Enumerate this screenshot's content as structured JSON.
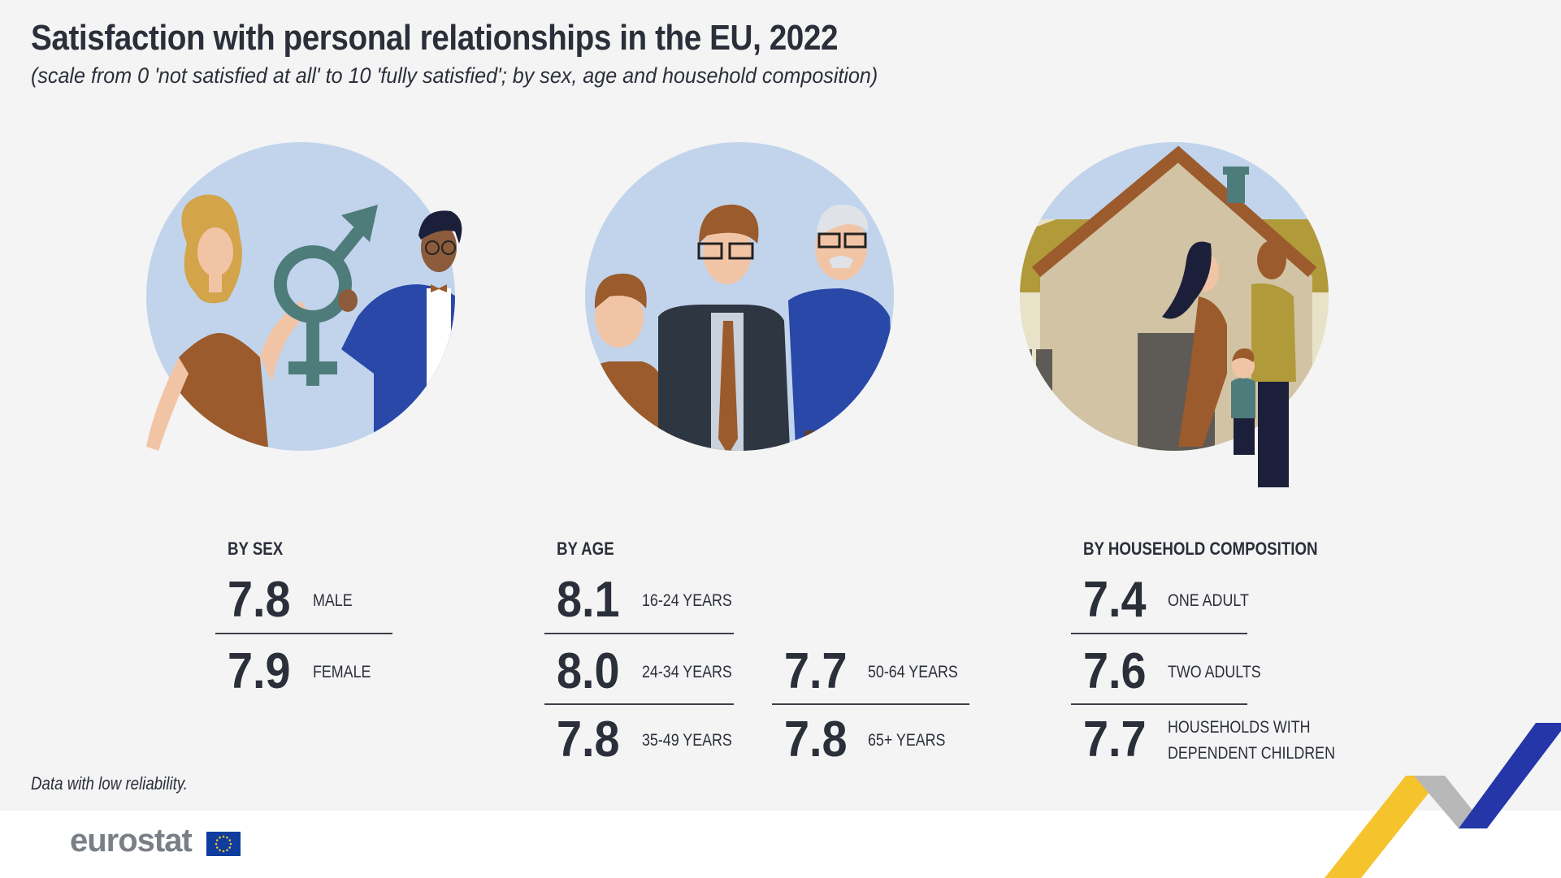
{
  "title": "Satisfaction with personal relationships in the EU, 2022",
  "subtitle": "(scale from 0 'not satisfied at all' to 10 'fully satisfied'; by sex, age and household composition)",
  "note": "Data with low reliability.",
  "logo": "eurostat",
  "colors": {
    "background": "#f4f4f4",
    "circle": "#c1d4ec",
    "text": "#2b2f3a",
    "accent_yellow": "#f5c32c",
    "accent_blue": "#2436a8"
  },
  "chart_data": [
    {
      "type": "table",
      "section": "BY SEX",
      "rows": [
        {
          "value": "7.8",
          "label": "MALE"
        },
        {
          "value": "7.9",
          "label": "FEMALE"
        }
      ]
    },
    {
      "type": "table",
      "section": "BY AGE",
      "rows": [
        {
          "value": "8.1",
          "label": "16-24 YEARS"
        },
        {
          "value": "8.0",
          "label": "24-34 YEARS"
        },
        {
          "value": "7.8",
          "label": "35-49 YEARS"
        },
        {
          "value": "7.7",
          "label": "50-64 YEARS"
        },
        {
          "value": "7.8",
          "label": "65+ YEARS"
        }
      ]
    },
    {
      "type": "table",
      "section": "BY HOUSEHOLD COMPOSITION",
      "rows": [
        {
          "value": "7.4",
          "label": "ONE ADULT"
        },
        {
          "value": "7.6",
          "label": "TWO ADULTS"
        },
        {
          "value": "7.7",
          "label_line1": "HOUSEHOLDS WITH",
          "label_line2": "DEPENDENT CHILDREN"
        }
      ]
    }
  ]
}
